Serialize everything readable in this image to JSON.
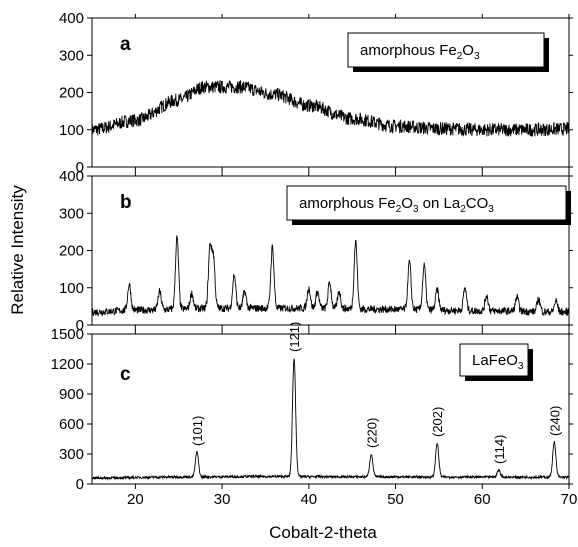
{
  "figure": {
    "ylabel": "Relative Intensity",
    "xlabel": "Cobalt-2-theta",
    "xlim": [
      15,
      70
    ],
    "xticks": [
      20,
      30,
      40,
      50,
      60,
      70
    ],
    "line_color": "#000000"
  },
  "chart_data": [
    {
      "type": "line",
      "panel_label": "a",
      "legend": {
        "text": "amorphous Fe",
        "sub1": "2",
        "mid": "O",
        "sub2": "3",
        "tail": ""
      },
      "ylim": [
        0,
        400
      ],
      "yticks": [
        0,
        100,
        200,
        300,
        400
      ],
      "baseline": {
        "x": [
          15,
          20,
          25,
          28,
          32,
          36,
          40,
          45,
          50,
          55,
          60,
          65,
          70
        ],
        "y": [
          100,
          125,
          180,
          215,
          215,
          195,
          165,
          130,
          110,
          103,
          100,
          100,
          102
        ]
      },
      "noise": 18,
      "peaks": []
    },
    {
      "type": "line",
      "panel_label": "b",
      "legend": {
        "text": "amorphous Fe",
        "sub1": "2",
        "mid": "O",
        "sub2": "3",
        "tail": " on La",
        "sub3": "2",
        "mid2": "CO",
        "sub4": "3"
      },
      "ylim": [
        0,
        400
      ],
      "yticks": [
        0,
        100,
        200,
        300,
        400
      ],
      "baseline": {
        "x": [
          15,
          20,
          30,
          40,
          50,
          60,
          70
        ],
        "y": [
          35,
          40,
          45,
          45,
          42,
          38,
          35
        ]
      },
      "noise": 10,
      "peaks": [
        {
          "x": 19.3,
          "y": 110
        },
        {
          "x": 22.8,
          "y": 90
        },
        {
          "x": 24.8,
          "y": 235
        },
        {
          "x": 26.5,
          "y": 85
        },
        {
          "x": 28.6,
          "y": 205
        },
        {
          "x": 29.0,
          "y": 180
        },
        {
          "x": 31.4,
          "y": 135
        },
        {
          "x": 32.6,
          "y": 90
        },
        {
          "x": 35.8,
          "y": 210
        },
        {
          "x": 40.0,
          "y": 100
        },
        {
          "x": 41.0,
          "y": 90
        },
        {
          "x": 42.4,
          "y": 115
        },
        {
          "x": 43.5,
          "y": 90
        },
        {
          "x": 45.4,
          "y": 225
        },
        {
          "x": 51.6,
          "y": 170
        },
        {
          "x": 53.3,
          "y": 160
        },
        {
          "x": 54.8,
          "y": 95
        },
        {
          "x": 58.0,
          "y": 100
        },
        {
          "x": 60.5,
          "y": 80
        },
        {
          "x": 64.0,
          "y": 75
        },
        {
          "x": 66.5,
          "y": 70
        },
        {
          "x": 68.5,
          "y": 65
        }
      ]
    },
    {
      "type": "line",
      "panel_label": "c",
      "legend": {
        "text": "LaFeO",
        "sub1": "3"
      },
      "ylim": [
        0,
        1500
      ],
      "yticks": [
        0,
        300,
        600,
        900,
        1200,
        1500
      ],
      "baseline": {
        "x": [
          15,
          25,
          35,
          45,
          55,
          70
        ],
        "y": [
          60,
          70,
          75,
          72,
          70,
          68
        ]
      },
      "noise": 12,
      "peaks": [
        {
          "x": 27.1,
          "y": 320,
          "label": "(101)"
        },
        {
          "x": 38.3,
          "y": 1260,
          "label": "(121)"
        },
        {
          "x": 47.2,
          "y": 300,
          "label": "(220)"
        },
        {
          "x": 54.8,
          "y": 410,
          "label": "(202)"
        },
        {
          "x": 61.9,
          "y": 140,
          "label": "(114)"
        },
        {
          "x": 68.3,
          "y": 420,
          "label": "(240)"
        }
      ]
    }
  ]
}
